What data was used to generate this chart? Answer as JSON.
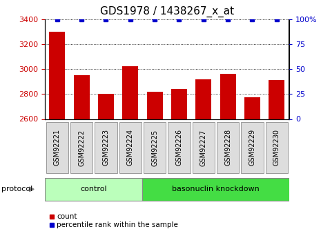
{
  "title": "GDS1978 / 1438267_x_at",
  "samples": [
    "GSM92221",
    "GSM92222",
    "GSM92223",
    "GSM92224",
    "GSM92225",
    "GSM92226",
    "GSM92227",
    "GSM92228",
    "GSM92229",
    "GSM92230"
  ],
  "counts": [
    3300,
    2950,
    2800,
    3020,
    2820,
    2840,
    2920,
    2960,
    2775,
    2910
  ],
  "percentile_ranks": [
    100,
    100,
    100,
    100,
    100,
    100,
    100,
    100,
    100,
    100
  ],
  "ylim_left": [
    2600,
    3400
  ],
  "ylim_right": [
    0,
    100
  ],
  "yticks_left": [
    2600,
    2800,
    3000,
    3200,
    3400
  ],
  "yticks_right": [
    0,
    25,
    50,
    75,
    100
  ],
  "ytick_labels_right": [
    "0",
    "25",
    "50",
    "75",
    "100%"
  ],
  "bar_color": "#cc0000",
  "scatter_color": "#0000cc",
  "bar_width": 0.65,
  "groups": [
    {
      "label": "control",
      "indices": [
        0,
        1,
        2,
        3
      ],
      "color": "#bbffbb"
    },
    {
      "label": "basonuclin knockdown",
      "indices": [
        4,
        5,
        6,
        7,
        8,
        9
      ],
      "color": "#44dd44"
    }
  ],
  "group_row_label": "protocol",
  "legend_items": [
    {
      "label": "count",
      "color": "#cc0000"
    },
    {
      "label": "percentile rank within the sample",
      "color": "#0000cc"
    }
  ],
  "title_fontsize": 11,
  "tick_fontsize": 8,
  "label_fontsize": 8,
  "left_tick_color": "#cc0000",
  "right_tick_color": "#0000cc",
  "xticklabel_bg": "#dddddd",
  "xticklabel_edge": "#999999"
}
